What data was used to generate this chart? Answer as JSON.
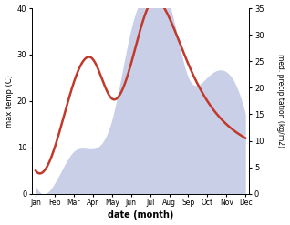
{
  "months": [
    "Jan",
    "Feb",
    "Mar",
    "Apr",
    "May",
    "Jun",
    "Jul",
    "Aug",
    "Sep",
    "Oct",
    "Nov",
    "Dec"
  ],
  "temp_max": [
    5.0,
    10.0,
    24.0,
    29.0,
    20.5,
    28.0,
    41.0,
    38.0,
    28.0,
    20.0,
    15.0,
    12.0
  ],
  "precip": [
    1.5,
    2.0,
    8.0,
    8.5,
    14.0,
    31.0,
    39.0,
    36.0,
    22.0,
    22.0,
    23.0,
    15.0
  ],
  "temp_ylim": [
    0,
    40
  ],
  "precip_ylim": [
    0,
    35
  ],
  "temp_color": "#c0392b",
  "precip_fill_color": "#b8c0e0",
  "precip_fill_alpha": 0.75,
  "xlabel": "date (month)",
  "ylabel_left": "max temp (C)",
  "ylabel_right": "med. precipitation (kg/m2)",
  "bg_color": "#ffffff",
  "temp_linewidth": 1.8
}
